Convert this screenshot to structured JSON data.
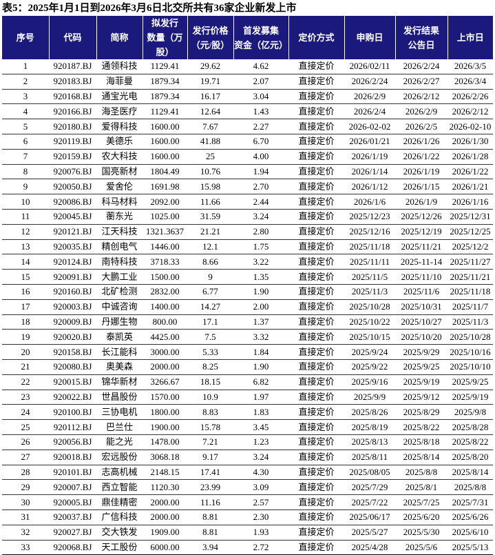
{
  "title": "表5：2025年1月1日到2026年3月6日北交所共有36家企业新发上市",
  "header_color": "#1b1a7c",
  "columns": [
    "序号",
    "代码",
    "简称",
    "拟发行数量（万股）",
    "发行价格（元/股）",
    "首发募集资金（亿元）",
    "定价方式",
    "申购日",
    "发行结果公告日",
    "上市日"
  ],
  "rows": [
    [
      "1",
      "920187.BJ",
      "通领科技",
      "1129.41",
      "29.62",
      "4.62",
      "直接定价",
      "2026/02/11",
      "2026/2/24",
      "2026/3/5"
    ],
    [
      "2",
      "920183.BJ",
      "海菲曼",
      "1879.34",
      "19.71",
      "2.07",
      "直接定价",
      "2026/2/24",
      "2026/2/27",
      "2026/3/4"
    ],
    [
      "3",
      "920168.BJ",
      "通宝光电",
      "1879.34",
      "16.17",
      "3.04",
      "直接定价",
      "2026/2/9",
      "2026/2/12",
      "2026/2/26"
    ],
    [
      "4",
      "920166.BJ",
      "海圣医疗",
      "1129.41",
      "12.64",
      "1.43",
      "直接定价",
      "2026/2/4",
      "2026/2/9",
      "2026/2/12"
    ],
    [
      "5",
      "920180.BJ",
      "爱得科技",
      "1600.00",
      "7.67",
      "2.27",
      "直接定价",
      "2026-02-02",
      "2026/2/5",
      "2026-02-10"
    ],
    [
      "6",
      "920119.BJ",
      "美德乐",
      "1600.00",
      "41.88",
      "6.70",
      "直接定价",
      "2026/01/21",
      "2026/1/26",
      "2026/1/30"
    ],
    [
      "7",
      "920159.BJ",
      "农大科技",
      "1600.00",
      "25",
      "4.00",
      "直接定价",
      "2026/1/19",
      "2026/1/22",
      "2026/1/28"
    ],
    [
      "8",
      "920076.BJ",
      "国亮新材",
      "1804.49",
      "10.76",
      "1.94",
      "直接定价",
      "2026/1/14",
      "2026/1/19",
      "2026/1/22"
    ],
    [
      "9",
      "920050.BJ",
      "爱舍伦",
      "1691.98",
      "15.98",
      "2.70",
      "直接定价",
      "2026/1/12",
      "2026/1/15",
      "2026/1/21"
    ],
    [
      "10",
      "920086.BJ",
      "科马材料",
      "2092.00",
      "11.66",
      "2.44",
      "直接定价",
      "2026/1/6",
      "2026/1/9",
      "2026/1/16"
    ],
    [
      "11",
      "920045.BJ",
      "蘅东光",
      "1025.00",
      "31.59",
      "3.24",
      "直接定价",
      "2025/12/23",
      "2025/12/26",
      "2025/12/31"
    ],
    [
      "12",
      "920121.BJ",
      "江天科技",
      "1321.3637",
      "21.21",
      "2.80",
      "直接定价",
      "2025/12/16",
      "2025/12/19",
      "2025/12/25"
    ],
    [
      "13",
      "920035.BJ",
      "精创电气",
      "1446.00",
      "12.1",
      "1.75",
      "直接定价",
      "2025/11/18",
      "2025/11/21",
      "2025/12/2"
    ],
    [
      "14",
      "920124.BJ",
      "南特科技",
      "3718.33",
      "8.66",
      "3.22",
      "直接定价",
      "2025/11/11",
      "2025-11-14",
      "2025/11/27"
    ],
    [
      "15",
      "920091.BJ",
      "大鹏工业",
      "1500.00",
      "9",
      "1.35",
      "直接定价",
      "2025/11/5",
      "2025/11/10",
      "2025/11/21"
    ],
    [
      "16",
      "920160.BJ",
      "北矿检测",
      "2832.00",
      "6.77",
      "1.90",
      "直接定价",
      "2025/11/3",
      "2025/11/6",
      "2025/11/18"
    ],
    [
      "17",
      "920003.BJ",
      "中诚咨询",
      "1400.00",
      "14.27",
      "2.00",
      "直接定价",
      "2025/10/28",
      "2025/10/31",
      "2025/11/7"
    ],
    [
      "18",
      "920009.BJ",
      "丹娜生物",
      "800.00",
      "17.1",
      "1.37",
      "直接定价",
      "2025/10/22",
      "2025/10/27",
      "2025/11/3"
    ],
    [
      "19",
      "920020.BJ",
      "泰凯英",
      "4425.00",
      "7.5",
      "3.32",
      "直接定价",
      "2025/10/15",
      "2025/10/20",
      "2025/10/28"
    ],
    [
      "20",
      "920158.BJ",
      "长江能科",
      "3000.00",
      "5.33",
      "1.84",
      "直接定价",
      "2025/9/24",
      "2025/9/29",
      "2025/10/16"
    ],
    [
      "21",
      "920080.BJ",
      "奥美森",
      "2000.00",
      "8.25",
      "1.90",
      "直接定价",
      "2025/9/22",
      "2025/9/25",
      "2025/10/10"
    ],
    [
      "22",
      "920015.BJ",
      "锦华新材",
      "3266.67",
      "18.15",
      "6.82",
      "直接定价",
      "2025/9/16",
      "2025/9/19",
      "2025/9/25"
    ],
    [
      "23",
      "920022.BJ",
      "世昌股份",
      "1570.00",
      "10.9",
      "1.97",
      "直接定价",
      "2025/9/9",
      "2025/9/12",
      "2025/9/19"
    ],
    [
      "24",
      "920100.BJ",
      "三协电机",
      "1800.00",
      "8.83",
      "1.83",
      "直接定价",
      "2025/8/26",
      "2025/8/29",
      "2025/9/8"
    ],
    [
      "25",
      "920112.BJ",
      "巴兰仕",
      "1900.00",
      "15.78",
      "3.45",
      "直接定价",
      "2025/8/19",
      "2025/8/22",
      "2025/8/28"
    ],
    [
      "26",
      "920056.BJ",
      "能之光",
      "1478.00",
      "7.21",
      "1.23",
      "直接定价",
      "2025/8/13",
      "2025/8/18",
      "2025/8/22"
    ],
    [
      "27",
      "920018.BJ",
      "宏远股份",
      "3068.18",
      "9.17",
      "3.24",
      "直接定价",
      "2025/8/11",
      "2025/8/14",
      "2025/8/20"
    ],
    [
      "28",
      "920101.BJ",
      "志高机械",
      "2148.15",
      "17.41",
      "4.30",
      "直接定价",
      "2025/08/05",
      "2025/8/8",
      "2025/8/14"
    ],
    [
      "29",
      "920007.BJ",
      "西立智能",
      "1120.30",
      "23.99",
      "3.09",
      "直接定价",
      "2025/7/29",
      "2025/8/1",
      "2025/8/8"
    ],
    [
      "30",
      "920005.BJ",
      "鼎佳精密",
      "2000.00",
      "11.16",
      "2.57",
      "直接定价",
      "2025/7/22",
      "2025/7/25",
      "2025/7/31"
    ],
    [
      "31",
      "920037.BJ",
      "广信科技",
      "2000.00",
      "8.81",
      "2.30",
      "直接定价",
      "2025/06/17",
      "2025/6/20",
      "2025/6/26"
    ],
    [
      "32",
      "920027.BJ",
      "交大铁发",
      "1909.00",
      "8.81",
      "1.93",
      "直接定价",
      "2025/5/27",
      "2025/5/30",
      "2025/6/10"
    ],
    [
      "33",
      "920068.BJ",
      "天工股份",
      "6000.00",
      "3.94",
      "2.72",
      "直接定价",
      "2025/4/28",
      "2025/5/6",
      "2025/5/13"
    ]
  ]
}
